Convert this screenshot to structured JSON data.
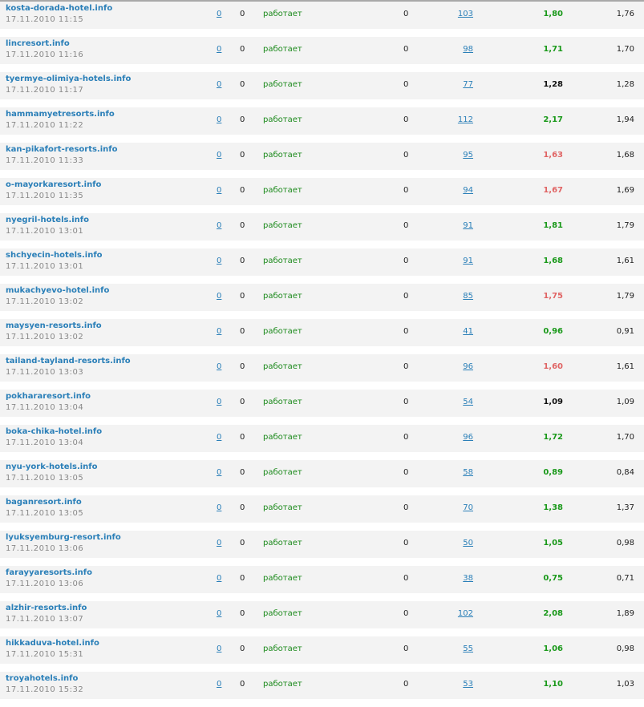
{
  "colors": {
    "green": "#1a991a",
    "red": "#e06464",
    "black": "#111111",
    "link": "#2a7fb8"
  },
  "rows": [
    {
      "name": "kosta-dorada-hotel.info",
      "date": "17.11.2010 11:15",
      "c1": "0",
      "c2": "0",
      "status": "работает",
      "c4": "0",
      "link": "103",
      "v1": "1,80",
      "v1_color": "green",
      "v2": "1,76"
    },
    {
      "name": "lincresort.info",
      "date": "17.11.2010 11:16",
      "c1": "0",
      "c2": "0",
      "status": "работает",
      "c4": "0",
      "link": "98",
      "v1": "1,71",
      "v1_color": "green",
      "v2": "1,70"
    },
    {
      "name": "tyermye-olimiya-hotels.info",
      "date": "17.11.2010 11:17",
      "c1": "0",
      "c2": "0",
      "status": "работает",
      "c4": "0",
      "link": "77",
      "v1": "1,28",
      "v1_color": "black",
      "v2": "1,28"
    },
    {
      "name": "hammamyetresorts.info",
      "date": "17.11.2010 11:22",
      "c1": "0",
      "c2": "0",
      "status": "работает",
      "c4": "0",
      "link": "112",
      "v1": "2,17",
      "v1_color": "green",
      "v2": "1,94"
    },
    {
      "name": "kan-pikafort-resorts.info",
      "date": "17.11.2010 11:33",
      "c1": "0",
      "c2": "0",
      "status": "работает",
      "c4": "0",
      "link": "95",
      "v1": "1,63",
      "v1_color": "red",
      "v2": "1,68"
    },
    {
      "name": "o-mayorkaresort.info",
      "date": "17.11.2010 11:35",
      "c1": "0",
      "c2": "0",
      "status": "работает",
      "c4": "0",
      "link": "94",
      "v1": "1,67",
      "v1_color": "red",
      "v2": "1,69"
    },
    {
      "name": "nyegril-hotels.info",
      "date": "17.11.2010 13:01",
      "c1": "0",
      "c2": "0",
      "status": "работает",
      "c4": "0",
      "link": "91",
      "v1": "1,81",
      "v1_color": "green",
      "v2": "1,79"
    },
    {
      "name": "shchyecin-hotels.info",
      "date": "17.11.2010 13:01",
      "c1": "0",
      "c2": "0",
      "status": "работает",
      "c4": "0",
      "link": "91",
      "v1": "1,68",
      "v1_color": "green",
      "v2": "1,61"
    },
    {
      "name": "mukachyevo-hotel.info",
      "date": "17.11.2010 13:02",
      "c1": "0",
      "c2": "0",
      "status": "работает",
      "c4": "0",
      "link": "85",
      "v1": "1,75",
      "v1_color": "red",
      "v2": "1,79"
    },
    {
      "name": "maysyen-resorts.info",
      "date": "17.11.2010 13:02",
      "c1": "0",
      "c2": "0",
      "status": "работает",
      "c4": "0",
      "link": "41",
      "v1": "0,96",
      "v1_color": "green",
      "v2": "0,91"
    },
    {
      "name": "tailand-tayland-resorts.info",
      "date": "17.11.2010 13:03",
      "c1": "0",
      "c2": "0",
      "status": "работает",
      "c4": "0",
      "link": "96",
      "v1": "1,60",
      "v1_color": "red",
      "v2": "1,61"
    },
    {
      "name": "pokhararesort.info",
      "date": "17.11.2010 13:04",
      "c1": "0",
      "c2": "0",
      "status": "работает",
      "c4": "0",
      "link": "54",
      "v1": "1,09",
      "v1_color": "black",
      "v2": "1,09"
    },
    {
      "name": "boka-chika-hotel.info",
      "date": "17.11.2010 13:04",
      "c1": "0",
      "c2": "0",
      "status": "работает",
      "c4": "0",
      "link": "96",
      "v1": "1,72",
      "v1_color": "green",
      "v2": "1,70"
    },
    {
      "name": "nyu-york-hotels.info",
      "date": "17.11.2010 13:05",
      "c1": "0",
      "c2": "0",
      "status": "работает",
      "c4": "0",
      "link": "58",
      "v1": "0,89",
      "v1_color": "green",
      "v2": "0,84"
    },
    {
      "name": "baganresort.info",
      "date": "17.11.2010 13:05",
      "c1": "0",
      "c2": "0",
      "status": "работает",
      "c4": "0",
      "link": "70",
      "v1": "1,38",
      "v1_color": "green",
      "v2": "1,37"
    },
    {
      "name": "lyuksyemburg-resort.info",
      "date": "17.11.2010 13:06",
      "c1": "0",
      "c2": "0",
      "status": "работает",
      "c4": "0",
      "link": "50",
      "v1": "1,05",
      "v1_color": "green",
      "v2": "0,98"
    },
    {
      "name": "farayyaresorts.info",
      "date": "17.11.2010 13:06",
      "c1": "0",
      "c2": "0",
      "status": "работает",
      "c4": "0",
      "link": "38",
      "v1": "0,75",
      "v1_color": "green",
      "v2": "0,71"
    },
    {
      "name": "alzhir-resorts.info",
      "date": "17.11.2010 13:07",
      "c1": "0",
      "c2": "0",
      "status": "работает",
      "c4": "0",
      "link": "102",
      "v1": "2,08",
      "v1_color": "green",
      "v2": "1,89"
    },
    {
      "name": "hikkaduva-hotel.info",
      "date": "17.11.2010 15:31",
      "c1": "0",
      "c2": "0",
      "status": "работает",
      "c4": "0",
      "link": "55",
      "v1": "1,06",
      "v1_color": "green",
      "v2": "0,98"
    },
    {
      "name": "troyahotels.info",
      "date": "17.11.2010 15:32",
      "c1": "0",
      "c2": "0",
      "status": "работает",
      "c4": "0",
      "link": "53",
      "v1": "1,10",
      "v1_color": "green",
      "v2": "1,03"
    }
  ]
}
